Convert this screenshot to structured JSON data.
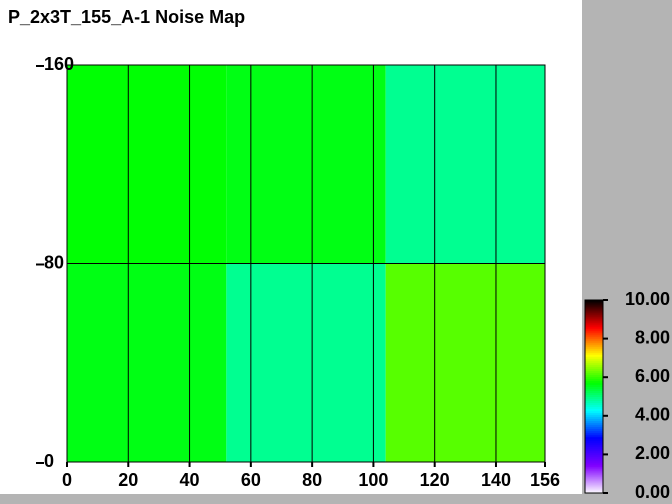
{
  "chart_data": {
    "type": "heatmap",
    "title": "P_2x3T_155_A-1 Noise Map",
    "x_bins": [
      0,
      52,
      104,
      156
    ],
    "y_bins": [
      0,
      80,
      160
    ],
    "values": [
      [
        5.6,
        4.9,
        6.2
      ],
      [
        5.7,
        5.6,
        4.9
      ]
    ],
    "xlim": [
      0,
      156
    ],
    "ylim": [
      0,
      160
    ],
    "xticks": [
      0,
      20,
      40,
      60,
      80,
      100,
      120,
      140,
      156
    ],
    "yticks": [
      0,
      80,
      160
    ],
    "grid": true,
    "zlim": [
      0,
      10
    ],
    "zticks": [
      {
        "value": 0,
        "label": "0.00"
      },
      {
        "value": 2,
        "label": "2.00"
      },
      {
        "value": 4,
        "label": "4.00"
      },
      {
        "value": 6,
        "label": "6.00"
      },
      {
        "value": 8,
        "label": "8.00"
      },
      {
        "value": 10,
        "label": "10.00"
      }
    ],
    "colorscale": [
      "#ffffff",
      "#8000ff",
      "#0000ff",
      "#00ffff",
      "#00ff00",
      "#ffff00",
      "#ff0000",
      "#000000"
    ]
  }
}
